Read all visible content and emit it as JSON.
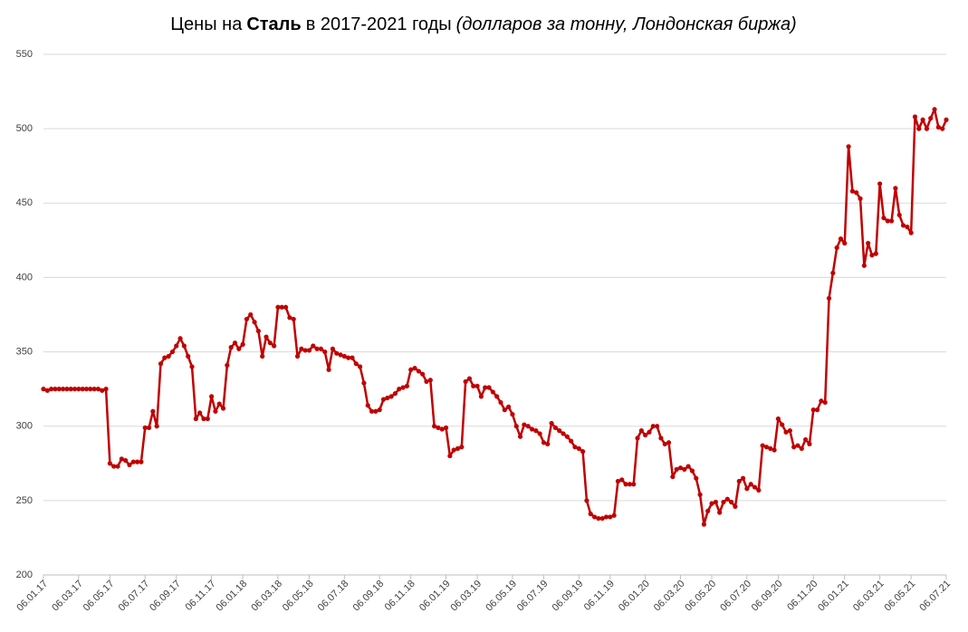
{
  "chart_data": {
    "type": "line",
    "title": {
      "prefix": "Цены на",
      "metal": "Сталь",
      "period": "в 2017-2021 годы",
      "unit": "(долларов за тонну, Лондонская биржа)"
    },
    "categories": [
      "06.01.17",
      null,
      null,
      null,
      null,
      null,
      null,
      null,
      null,
      "06.03.17",
      null,
      null,
      null,
      null,
      null,
      null,
      null,
      "06.05.17",
      null,
      null,
      null,
      null,
      null,
      null,
      null,
      null,
      "06.07.17",
      null,
      null,
      null,
      null,
      null,
      null,
      null,
      "06.09.17",
      null,
      null,
      null,
      null,
      null,
      null,
      null,
      null,
      "06.11.17",
      null,
      null,
      null,
      null,
      null,
      null,
      null,
      "06.01.18",
      null,
      null,
      null,
      null,
      null,
      null,
      null,
      null,
      "06.03.18",
      null,
      null,
      null,
      null,
      null,
      null,
      null,
      "06.05.18",
      null,
      null,
      null,
      null,
      null,
      null,
      null,
      null,
      "06.07.18",
      null,
      null,
      null,
      null,
      null,
      null,
      null,
      null,
      "06.09.18",
      null,
      null,
      null,
      null,
      null,
      null,
      null,
      "06.11.18",
      null,
      null,
      null,
      null,
      null,
      null,
      null,
      null,
      "06.01.19",
      null,
      null,
      null,
      null,
      null,
      null,
      null,
      "06.03.19",
      null,
      null,
      null,
      null,
      null,
      null,
      null,
      null,
      "06.05.19",
      null,
      null,
      null,
      null,
      null,
      null,
      null,
      "06.07.19",
      null,
      null,
      null,
      null,
      null,
      null,
      null,
      null,
      "06.09.19",
      null,
      null,
      null,
      null,
      null,
      null,
      null,
      "06.11.19",
      null,
      null,
      null,
      null,
      null,
      null,
      null,
      null,
      "06.01.20",
      null,
      null,
      null,
      null,
      null,
      null,
      null,
      null,
      "06.03.20",
      null,
      null,
      null,
      null,
      null,
      null,
      null,
      "06.05.20",
      null,
      null,
      null,
      null,
      null,
      null,
      null,
      null,
      "06.07.20",
      null,
      null,
      null,
      null,
      null,
      null,
      null,
      "06.09.20",
      null,
      null,
      null,
      null,
      null,
      null,
      null,
      null,
      "06.11.20",
      null,
      null,
      null,
      null,
      null,
      null,
      null,
      "06.01.21",
      null,
      null,
      null,
      null,
      null,
      null,
      null,
      null,
      "06.03.21",
      null,
      null,
      null,
      null,
      null,
      null,
      null,
      "06.05.21",
      null,
      null,
      null,
      null,
      null,
      null,
      null,
      null,
      "06.07.21"
    ],
    "series": [
      {
        "name": "Сталь",
        "color": "#c00000",
        "values": [
          325,
          324,
          325,
          325,
          325,
          325,
          325,
          325,
          325,
          325,
          325,
          325,
          325,
          325,
          325,
          324,
          325,
          275,
          273,
          273,
          278,
          277,
          274,
          276,
          276,
          276,
          299,
          299,
          310,
          300,
          342,
          346,
          347,
          350,
          354,
          359,
          354,
          347,
          340,
          305,
          309,
          305,
          305,
          320,
          310,
          315,
          312,
          341,
          353,
          356,
          352,
          355,
          372,
          375,
          370,
          364,
          347,
          360,
          356,
          354,
          380,
          380,
          380,
          373,
          372,
          347,
          352,
          351,
          351,
          354,
          352,
          352,
          350,
          338,
          352,
          349,
          348,
          347,
          346,
          346,
          342,
          340,
          329,
          314,
          310,
          310,
          311,
          318,
          319,
          320,
          322,
          325,
          326,
          327,
          338,
          339,
          337,
          335,
          330,
          331,
          300,
          299,
          298,
          299,
          280,
          284,
          285,
          286,
          330,
          332,
          327,
          327,
          320,
          326,
          326,
          323,
          320,
          316,
          311,
          313,
          308,
          300,
          293,
          301,
          300,
          298,
          297,
          295,
          289,
          288,
          302,
          299,
          297,
          295,
          293,
          290,
          286,
          285,
          283,
          250,
          241,
          239,
          238,
          238,
          239,
          239,
          240,
          263,
          264,
          261,
          261,
          261,
          292,
          297,
          294,
          296,
          300,
          300,
          292,
          288,
          289,
          266,
          271,
          272,
          271,
          273,
          270,
          265,
          254,
          234,
          243,
          248,
          249,
          242,
          249,
          251,
          249,
          246,
          263,
          265,
          258,
          261,
          259,
          257,
          287,
          286,
          285,
          284,
          305,
          301,
          296,
          297,
          286,
          287,
          285,
          291,
          288,
          311,
          311,
          317,
          316,
          386,
          403,
          420,
          426,
          423,
          488,
          458,
          457,
          453,
          408,
          423,
          415,
          416,
          463,
          440,
          438,
          438,
          460,
          442,
          435,
          434,
          430,
          508,
          500,
          506,
          500,
          507,
          513,
          501,
          500,
          506
        ]
      }
    ],
    "ylim": [
      200,
      550
    ],
    "yticks": [
      200,
      250,
      300,
      350,
      400,
      450,
      500,
      550
    ],
    "grid": true
  }
}
